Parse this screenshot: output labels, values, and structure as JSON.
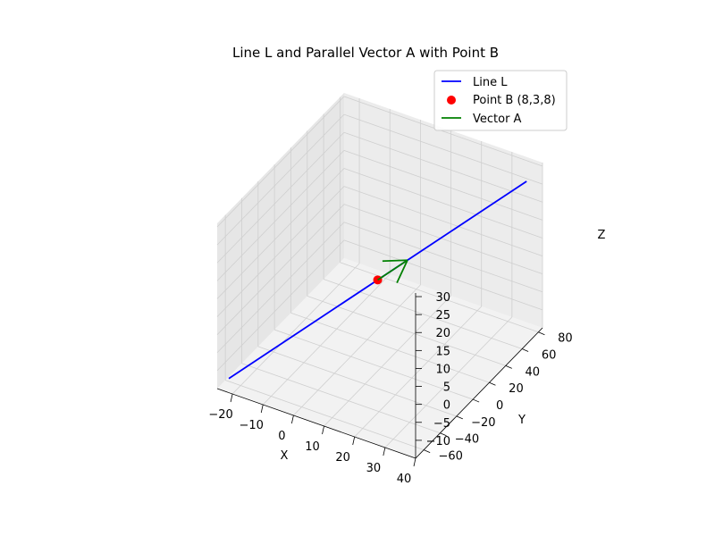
{
  "chart_data": {
    "type": "line3d",
    "title": "Line L and Parallel Vector A with Point B",
    "xlabel": "X",
    "ylabel": "Y",
    "zlabel": "Z",
    "xlim": [
      -25,
      40
    ],
    "ylim": [
      -70,
      85
    ],
    "zlim": [
      -15,
      31
    ],
    "x_ticks": [
      -20,
      -10,
      0,
      10,
      20,
      30,
      40
    ],
    "y_ticks": [
      -60,
      -40,
      -20,
      0,
      20,
      40,
      60,
      80
    ],
    "z_ticks": [
      -10,
      -5,
      0,
      5,
      10,
      15,
      20,
      25,
      30
    ],
    "grid": true,
    "legend_position": "top-right",
    "series": [
      {
        "name": "Line L",
        "kind": "line",
        "color": "#0000ff",
        "points": [
          [
            -22,
            -67,
            -12
          ],
          [
            38,
            73,
            28
          ]
        ]
      },
      {
        "name": "Point B (8,3,8)",
        "kind": "point",
        "color": "#ff0000",
        "points": [
          [
            8,
            3,
            8
          ]
        ]
      },
      {
        "name": "Vector A",
        "kind": "arrow",
        "color": "#008000",
        "points": [
          [
            8,
            3,
            8
          ],
          [
            14,
            17,
            12
          ]
        ]
      }
    ]
  }
}
